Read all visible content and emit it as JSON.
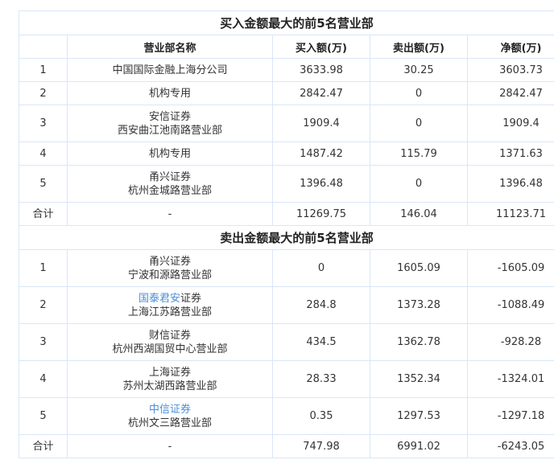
{
  "buy_section": {
    "title": "买入金额最大的前5名营业部",
    "headers": [
      "",
      "营业部名称",
      "买入额(万)",
      "卖出额(万)",
      "净额(万)"
    ],
    "rows": [
      {
        "rank": "1",
        "name": [
          [
            {
              "t": "中国国际金融上海分公司"
            }
          ]
        ],
        "buy": "3633.98",
        "sell": "30.25",
        "net": "3603.73"
      },
      {
        "rank": "2",
        "name": [
          [
            {
              "t": "机构专用"
            }
          ]
        ],
        "buy": "2842.47",
        "sell": "0",
        "net": "2842.47"
      },
      {
        "rank": "3",
        "name": [
          [
            {
              "t": "安信证券"
            }
          ],
          [
            {
              "t": "西安曲江池南路营业部"
            }
          ]
        ],
        "buy": "1909.4",
        "sell": "0",
        "net": "1909.4"
      },
      {
        "rank": "4",
        "name": [
          [
            {
              "t": "机构专用"
            }
          ]
        ],
        "buy": "1487.42",
        "sell": "115.79",
        "net": "1371.63"
      },
      {
        "rank": "5",
        "name": [
          [
            {
              "t": "甬兴证券"
            }
          ],
          [
            {
              "t": "杭州金城路营业部"
            }
          ]
        ],
        "buy": "1396.48",
        "sell": "0",
        "net": "1396.48"
      }
    ],
    "total": {
      "rank": "合计",
      "name": "-",
      "buy": "11269.75",
      "sell": "146.04",
      "net": "11123.71"
    }
  },
  "sell_section": {
    "title": "卖出金额最大的前5名营业部",
    "rows": [
      {
        "rank": "1",
        "name": [
          [
            {
              "t": "甬兴证券"
            }
          ],
          [
            {
              "t": "宁波和源路营业部"
            }
          ]
        ],
        "buy": "0",
        "sell": "1605.09",
        "net": "-1605.09"
      },
      {
        "rank": "2",
        "name": [
          [
            {
              "t": "国泰君安",
              "link": true
            },
            {
              "t": "证券"
            }
          ],
          [
            {
              "t": "上海江苏路营业部"
            }
          ]
        ],
        "buy": "284.8",
        "sell": "1373.28",
        "net": "-1088.49"
      },
      {
        "rank": "3",
        "name": [
          [
            {
              "t": "财信证券"
            }
          ],
          [
            {
              "t": "杭州西湖国贸中心营业部"
            }
          ]
        ],
        "buy": "434.5",
        "sell": "1362.78",
        "net": "-928.28"
      },
      {
        "rank": "4",
        "name": [
          [
            {
              "t": "上海证券"
            }
          ],
          [
            {
              "t": "苏州太湖西路营业部"
            }
          ]
        ],
        "buy": "28.33",
        "sell": "1352.34",
        "net": "-1324.01"
      },
      {
        "rank": "5",
        "name": [
          [
            {
              "t": "中信证券",
              "link": true
            }
          ],
          [
            {
              "t": "杭州文三路营业部"
            }
          ]
        ],
        "buy": "0.35",
        "sell": "1297.53",
        "net": "-1297.18"
      }
    ],
    "total": {
      "rank": "合计",
      "name": "-",
      "buy": "747.98",
      "sell": "6991.02",
      "net": "-6243.05"
    }
  },
  "colors": {
    "border": "#d9e6f7",
    "link": "#4a8fd8"
  }
}
